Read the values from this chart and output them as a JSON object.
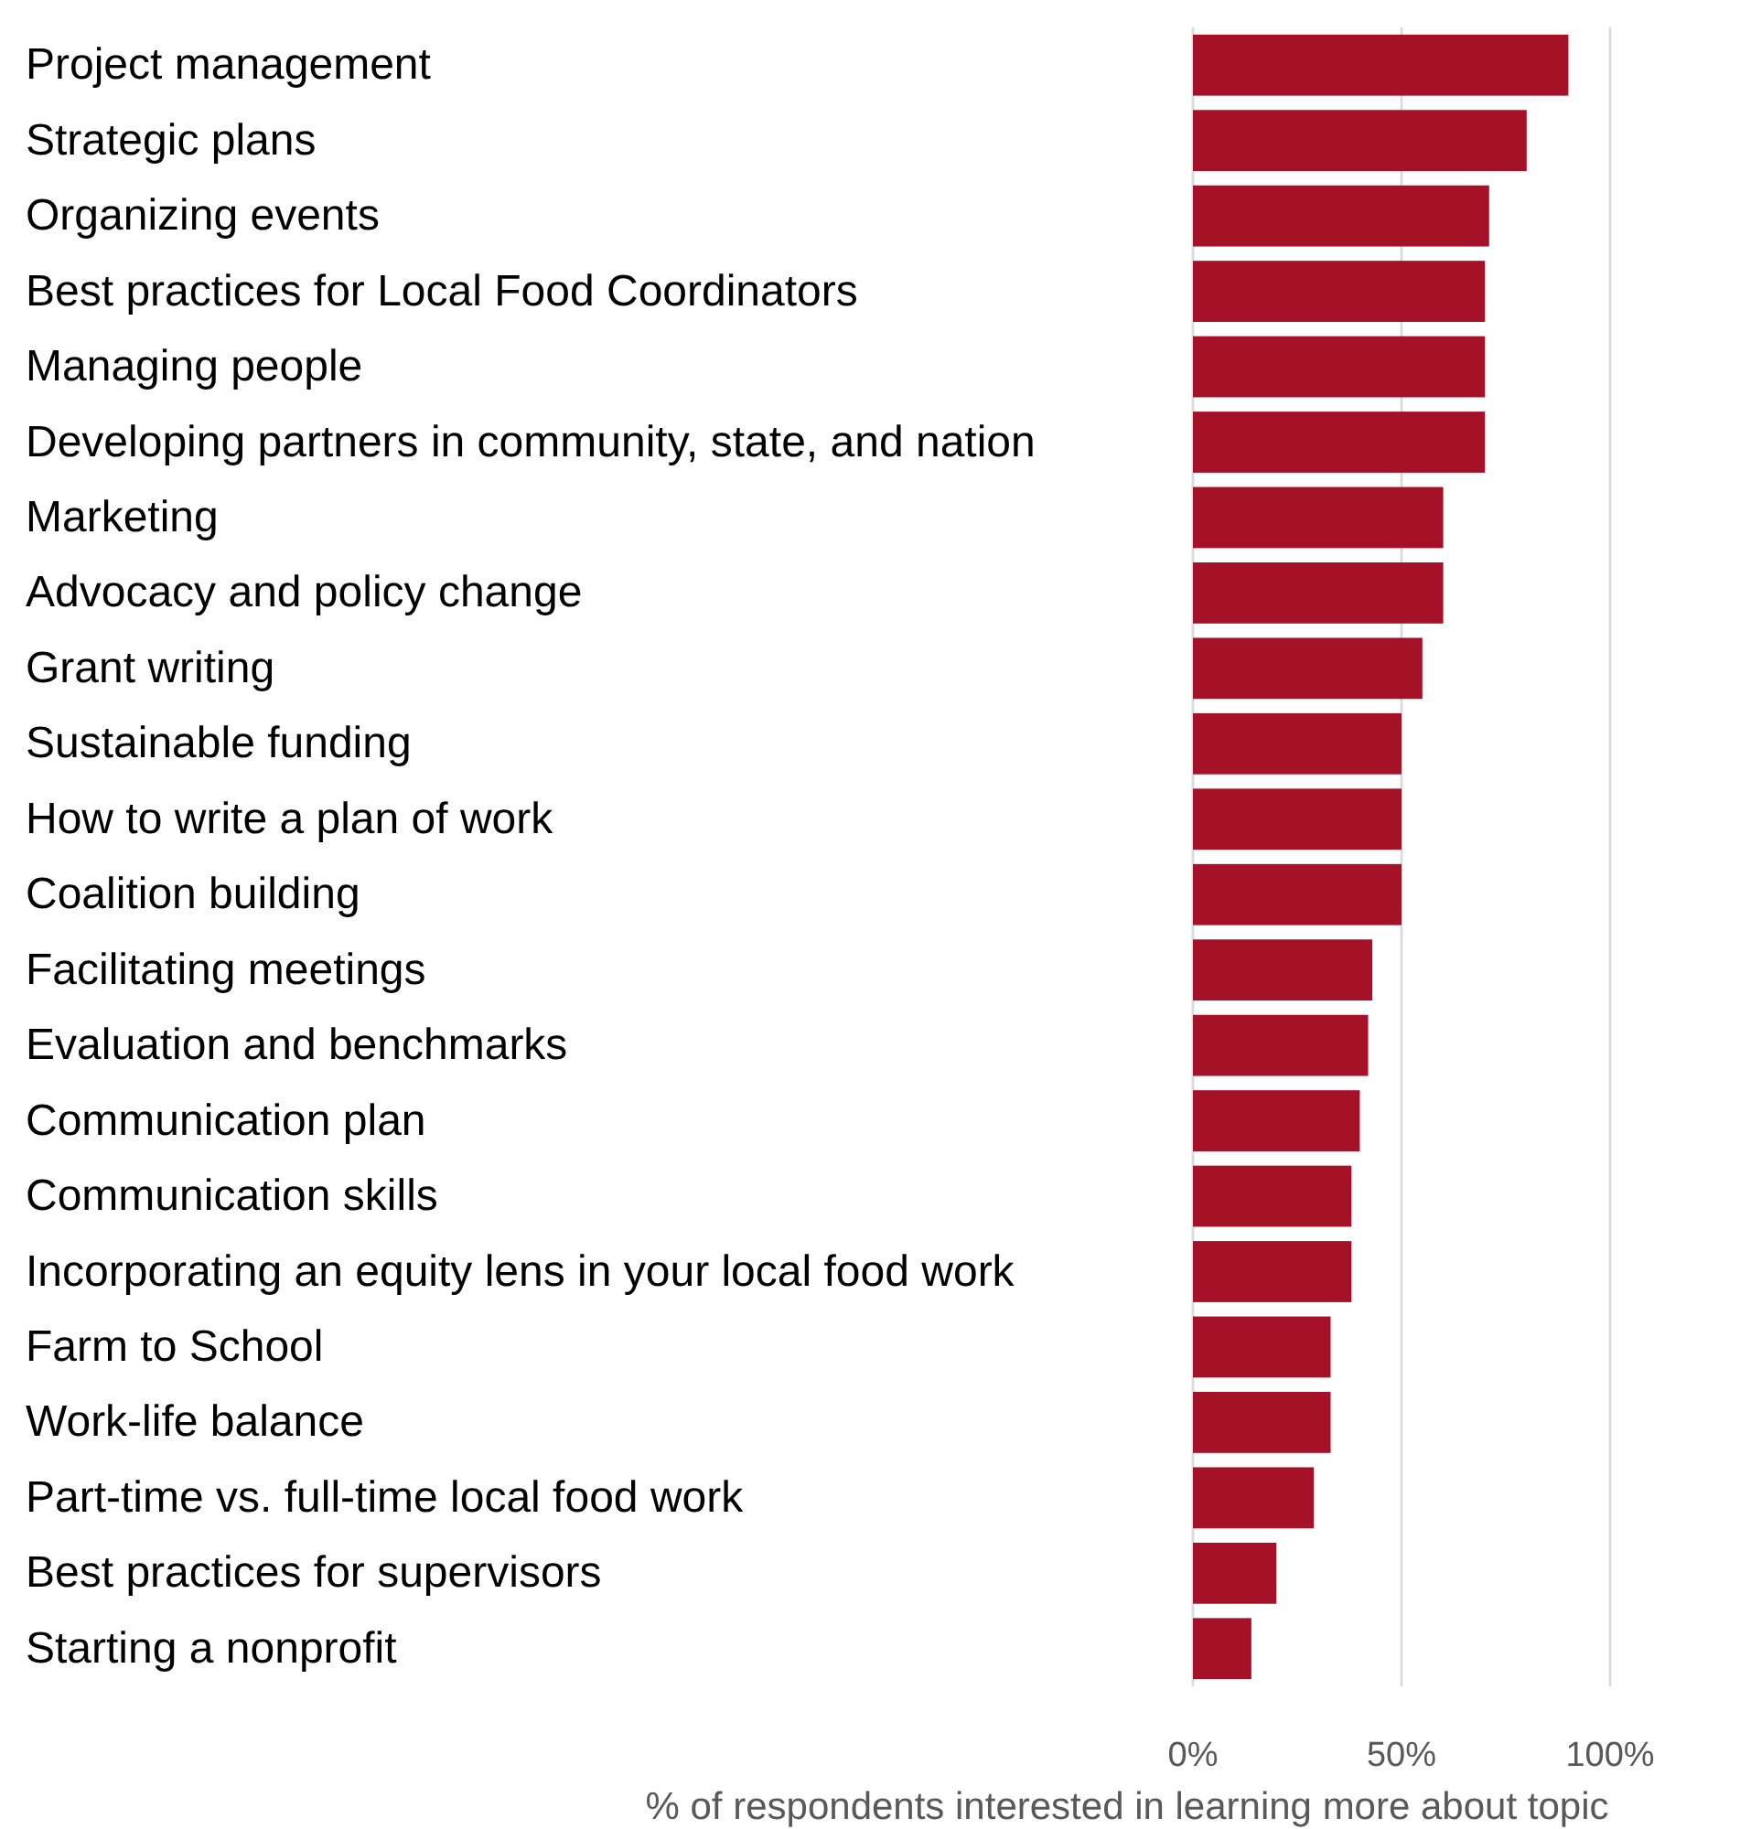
{
  "chart_data": {
    "type": "bar",
    "orientation": "horizontal",
    "xlabel": "% of respondents interested in learning more about topic",
    "categories": [
      "Project management",
      "Strategic plans",
      "Organizing events",
      "Best practices for Local Food Coordinators",
      "Managing people",
      "Developing partners in community, state, and nation",
      "Marketing",
      "Advocacy and policy change",
      "Grant writing",
      "Sustainable funding",
      "How to write a plan of work",
      "Coalition building",
      "Facilitating meetings",
      "Evaluation and benchmarks",
      "Communication plan",
      "Communication skills",
      "Incorporating an equity lens in your local food work",
      "Farm to School",
      "Work-life balance",
      "Part-time vs. full-time local food work",
      "Best practices for supervisors",
      "Starting a nonprofit"
    ],
    "values": [
      90,
      80,
      71,
      70,
      70,
      70,
      60,
      60,
      55,
      50,
      50,
      50,
      43,
      42,
      40,
      38,
      38,
      33,
      33,
      29,
      20,
      14
    ],
    "color": "#a51127",
    "xlim": [
      0,
      100
    ],
    "xticks": [
      {
        "value": 0,
        "label": "0%"
      },
      {
        "value": 50,
        "label": "50%"
      },
      {
        "value": 100,
        "label": "100%"
      }
    ],
    "grid": "x"
  }
}
